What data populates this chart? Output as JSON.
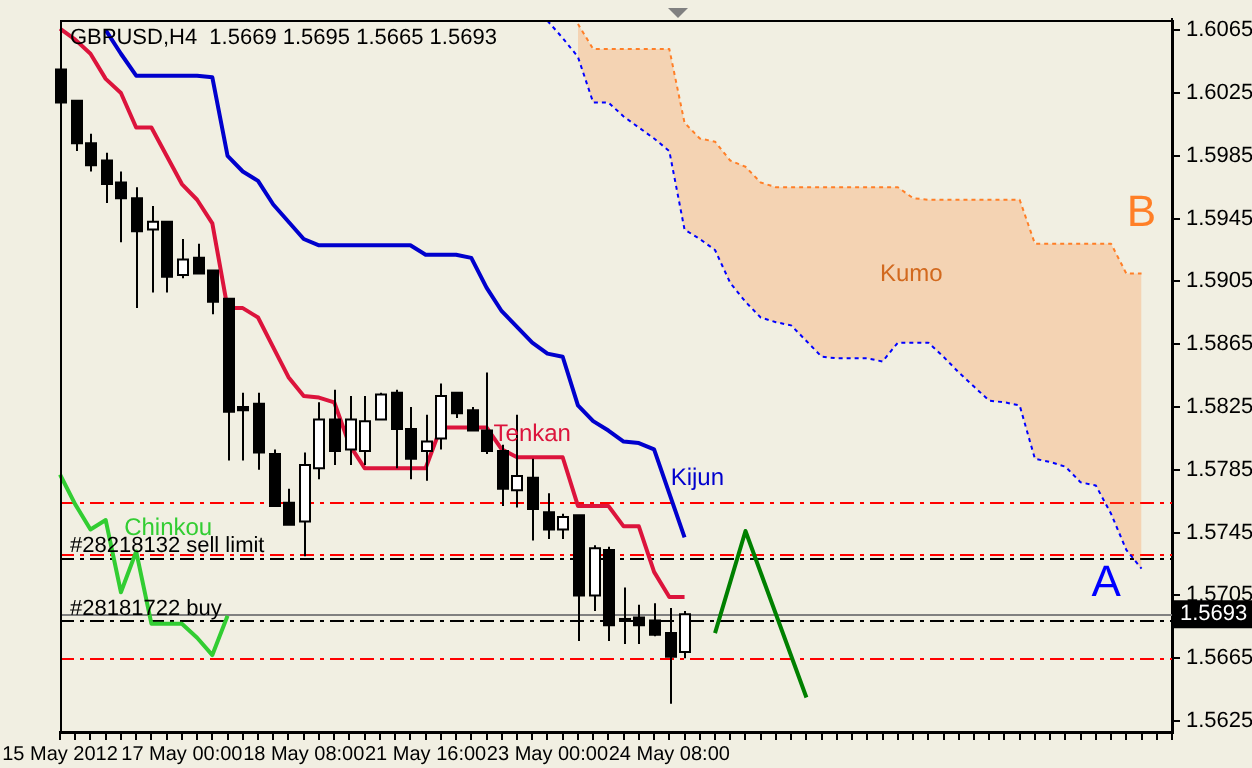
{
  "chart_data": {
    "type": "candlestick",
    "title": "GBPUSD,H4  1.5669 1.5695 1.5665 1.5693",
    "categories": [
      "15 May 2012",
      null,
      null,
      null,
      null,
      null,
      null,
      null,
      "17 May 00:00",
      null,
      null,
      null,
      null,
      null,
      null,
      null,
      "18 May 08:00",
      null,
      null,
      null,
      null,
      null,
      null,
      null,
      "21 May 16:00",
      null,
      null,
      null,
      null,
      null,
      null,
      null,
      "23 May 00:00",
      null,
      null,
      null,
      null,
      null,
      null,
      null,
      "24 May 08:00",
      null,
      null,
      null,
      null,
      null,
      null,
      null,
      null,
      null,
      null,
      null,
      null,
      null,
      null,
      null,
      null,
      null,
      null,
      null,
      null,
      null,
      null,
      null,
      null,
      null,
      null,
      null,
      null,
      null,
      null,
      null,
      null,
      null
    ],
    "ohlc": [
      [
        1.604,
        1.6045,
        1.6015,
        1.6019
      ],
      [
        1.602,
        1.602,
        1.5988,
        1.5993
      ],
      [
        1.5993,
        1.5999,
        1.5975,
        1.5979
      ],
      [
        1.5982,
        1.5987,
        1.5955,
        1.5967
      ],
      [
        1.5968,
        1.5975,
        1.593,
        1.5958
      ],
      [
        1.5958,
        1.5965,
        1.5888,
        1.5937
      ],
      [
        1.5938,
        1.5953,
        1.5898,
        1.5943
      ],
      [
        1.5943,
        1.5943,
        1.5898,
        1.5908
      ],
      [
        1.5909,
        1.5932,
        1.5907,
        1.5919
      ],
      [
        1.592,
        1.5929,
        1.591,
        1.591
      ],
      [
        1.5912,
        1.5912,
        1.5884,
        1.5892
      ],
      [
        1.5894,
        1.5894,
        1.5791,
        1.5822
      ],
      [
        1.5825,
        1.5834,
        1.5791,
        1.5823
      ],
      [
        1.5827,
        1.5834,
        1.5785,
        1.5796
      ],
      [
        1.5795,
        1.5798,
        1.5762,
        1.5762
      ],
      [
        1.5764,
        1.5773,
        1.575,
        1.575
      ],
      [
        1.5752,
        1.5796,
        1.573,
        1.5788
      ],
      [
        1.5786,
        1.5828,
        1.5779,
        1.5817
      ],
      [
        1.5817,
        1.5836,
        1.5788,
        1.5797
      ],
      [
        1.5798,
        1.5832,
        1.5788,
        1.5817
      ],
      [
        1.5797,
        1.5832,
        1.5788,
        1.5816
      ],
      [
        1.5817,
        1.5834,
        1.5817,
        1.5833
      ],
      [
        1.5834,
        1.5836,
        1.5786,
        1.5811
      ],
      [
        1.5811,
        1.5825,
        1.5779,
        1.5792
      ],
      [
        1.5797,
        1.582,
        1.5778,
        1.5803
      ],
      [
        1.5805,
        1.584,
        1.5798,
        1.5832
      ],
      [
        1.5834,
        1.5834,
        1.5818,
        1.5821
      ],
      [
        1.5823,
        1.5825,
        1.581,
        1.581
      ],
      [
        1.581,
        1.5847,
        1.5795,
        1.5797
      ],
      [
        1.5797,
        1.5801,
        1.5762,
        1.5773
      ],
      [
        1.5772,
        1.582,
        1.5761,
        1.5781
      ],
      [
        1.578,
        1.5792,
        1.574,
        1.576
      ],
      [
        1.5758,
        1.577,
        1.5741,
        1.5747
      ],
      [
        1.5747,
        1.5757,
        1.5741,
        1.5755
      ],
      [
        1.5756,
        1.5756,
        1.5676,
        1.5705
      ],
      [
        1.5705,
        1.5737,
        1.5695,
        1.5735
      ],
      [
        1.5734,
        1.5736,
        1.5676,
        1.5686
      ],
      [
        1.569,
        1.571,
        1.5674,
        1.5689
      ],
      [
        1.5691,
        1.5699,
        1.5674,
        1.5686
      ],
      [
        1.5689,
        1.57,
        1.5679,
        1.568
      ],
      [
        1.5681,
        1.5697,
        1.5636,
        1.5666
      ],
      [
        1.5669,
        1.5695,
        1.5665,
        1.5693
      ],
      null,
      null,
      null,
      null,
      null,
      null,
      null,
      null,
      null,
      null,
      null,
      null,
      null,
      null,
      null,
      null,
      null,
      null,
      null,
      null,
      null,
      null,
      null,
      null,
      null,
      null,
      null,
      null,
      null,
      null,
      null,
      null
    ],
    "series": [
      {
        "name": "Tenkan",
        "type": "line",
        "color": "#dc143c",
        "line_style": "solid",
        "values": [
          1.6066,
          1.6059,
          1.605,
          1.6034,
          1.6025,
          1.6003,
          1.6003,
          1.5985,
          1.5967,
          1.5957,
          1.5942,
          1.5888,
          1.5888,
          1.5882,
          1.5863,
          1.5844,
          1.5832,
          1.5831,
          1.5828,
          1.5801,
          1.5786,
          1.5786,
          1.5786,
          1.5786,
          1.5786,
          1.5812,
          1.5812,
          1.5812,
          1.5812,
          1.5798,
          1.5793,
          1.5793,
          1.5793,
          1.5793,
          1.5762,
          1.5762,
          1.5762,
          1.5749,
          1.5749,
          1.572,
          1.5704,
          1.5704,
          null,
          null,
          null,
          null,
          null,
          null,
          null,
          null,
          null,
          null,
          null,
          null,
          null,
          null,
          null,
          null,
          null,
          null,
          null,
          null,
          null,
          null,
          null,
          null,
          null,
          null,
          null,
          null,
          null,
          null,
          null,
          null
        ]
      },
      {
        "name": "Kijun",
        "type": "line",
        "color": "#0000cd",
        "line_style": "solid",
        "values": [
          null,
          null,
          null,
          1.6065,
          1.605,
          1.6036,
          1.6036,
          1.6036,
          1.6036,
          1.6036,
          1.6035,
          1.5985,
          1.5975,
          1.5969,
          1.5954,
          1.5943,
          1.5932,
          1.5928,
          1.5928,
          1.5928,
          1.5928,
          1.5928,
          1.5928,
          1.5928,
          1.5922,
          1.5922,
          1.5922,
          1.592,
          1.5901,
          1.5886,
          1.5876,
          1.5866,
          1.5859,
          1.5857,
          1.5826,
          1.5816,
          1.581,
          1.5803,
          1.5802,
          1.5798,
          1.577,
          1.5742,
          null,
          null,
          null,
          null,
          null,
          null,
          null,
          null,
          null,
          null,
          null,
          null,
          null,
          null,
          null,
          null,
          null,
          null,
          null,
          null,
          null,
          null,
          null,
          null,
          null,
          null,
          null,
          null,
          null,
          null,
          null,
          null
        ]
      },
      {
        "name": "Chinkou",
        "type": "line",
        "color": "#32cd32",
        "line_style": "solid",
        "values": [
          1.5782,
          1.5763,
          1.5747,
          1.5753,
          1.5707,
          1.5733,
          1.5687,
          1.5687,
          1.5687,
          1.5678,
          1.5667,
          1.5692,
          null,
          null,
          null,
          null,
          null,
          null,
          null,
          null,
          null,
          null,
          null,
          null,
          null,
          null,
          null,
          null,
          null,
          null,
          null,
          null,
          null,
          null,
          null,
          null,
          null,
          null,
          null,
          null,
          null,
          null,
          null,
          null,
          null,
          null,
          null,
          null,
          null,
          null,
          null,
          null,
          null,
          null,
          null,
          null,
          null,
          null,
          null,
          null,
          null,
          null,
          null,
          null,
          null,
          null,
          null,
          null,
          null,
          null,
          null,
          null,
          null,
          null
        ]
      },
      {
        "name": "A",
        "type": "line",
        "color": "#0000ff",
        "line_style": "dotted",
        "values": [
          null,
          null,
          null,
          null,
          null,
          null,
          null,
          null,
          null,
          null,
          null,
          null,
          null,
          null,
          null,
          null,
          null,
          null,
          null,
          null,
          null,
          null,
          null,
          null,
          null,
          null,
          null,
          null,
          null,
          null,
          null,
          null,
          1.6071,
          1.606,
          1.6048,
          1.6019,
          1.6019,
          1.601,
          1.6003,
          1.5996,
          1.5988,
          1.5938,
          1.5932,
          1.5925,
          1.5904,
          1.5892,
          1.5882,
          1.5879,
          1.5877,
          1.5867,
          1.5857,
          1.5856,
          1.5856,
          1.5856,
          1.5854,
          1.5866,
          1.5866,
          1.5866,
          1.5857,
          1.5847,
          1.5838,
          1.5829,
          1.5828,
          1.5826,
          1.5792,
          1.579,
          1.5787,
          1.5777,
          1.5775,
          1.5757,
          1.5734,
          1.5722,
          null,
          null
        ]
      },
      {
        "name": "B",
        "type": "area",
        "color": "#ff7f27",
        "line_style": "dotted",
        "values": [
          null,
          null,
          null,
          null,
          null,
          null,
          null,
          null,
          null,
          null,
          null,
          null,
          null,
          null,
          null,
          null,
          null,
          null,
          null,
          null,
          null,
          null,
          null,
          null,
          null,
          null,
          null,
          null,
          null,
          null,
          null,
          null,
          null,
          null,
          1.6069,
          1.6053,
          1.6053,
          1.6053,
          1.6053,
          1.6053,
          1.6053,
          1.6006,
          1.5996,
          1.5994,
          1.5982,
          1.5978,
          1.5968,
          1.5965,
          1.5965,
          1.5965,
          1.5965,
          1.5965,
          1.5965,
          1.5965,
          1.5965,
          1.5965,
          1.5958,
          1.5957,
          1.5957,
          1.5957,
          1.5957,
          1.5957,
          1.5957,
          1.5957,
          1.5929,
          1.5929,
          1.5929,
          1.5929,
          1.5929,
          1.5929,
          1.591,
          1.591,
          null,
          null
        ]
      },
      {
        "type": "line",
        "color": "#008000",
        "line_style": "solid",
        "values": [
          null,
          null,
          null,
          null,
          null,
          null,
          null,
          null,
          null,
          null,
          null,
          null,
          null,
          null,
          null,
          null,
          null,
          null,
          null,
          null,
          null,
          null,
          null,
          null,
          null,
          null,
          null,
          null,
          null,
          null,
          null,
          null,
          null,
          null,
          null,
          null,
          null,
          null,
          null,
          null,
          null,
          null,
          null,
          1.5681,
          null,
          1.5746,
          null,
          null,
          null,
          1.564,
          null,
          null,
          null,
          null,
          null,
          null,
          null,
          null,
          null,
          null,
          null,
          null,
          null,
          null,
          null,
          null,
          null,
          null,
          null,
          null,
          null,
          null,
          null,
          null
        ]
      }
    ],
    "ylim": [
      1.5618,
      1.6072
    ],
    "yticks": [
      1.5625,
      1.5665,
      1.5705,
      1.5745,
      1.5785,
      1.5825,
      1.5865,
      1.5905,
      1.5945,
      1.5985,
      1.6025,
      1.6065
    ],
    "ref_lines": [
      {
        "axis": "y",
        "value": 1.5765,
        "label": null,
        "color": "#ff0000",
        "line_style": "dashed"
      },
      {
        "axis": "y",
        "value": 1.5732,
        "label": null,
        "color": "#ff0000",
        "line_style": "dashed"
      },
      {
        "axis": "y",
        "value": 1.5729,
        "label": "#28218132 sell limit",
        "color": "#000000",
        "line_style": "dashed"
      },
      {
        "axis": "y",
        "value": 1.5693,
        "label": "1.5693",
        "color": "#808080",
        "line_style": "solid"
      },
      {
        "axis": "y",
        "value": 1.5689,
        "label": "#28181722 buy",
        "color": "#000000",
        "line_style": "dashed"
      },
      {
        "axis": "y",
        "value": 1.5665,
        "label": null,
        "color": "#ff0000",
        "line_style": "dashed"
      }
    ],
    "annotations": [
      "Kumo"
    ],
    "legend": false
  }
}
